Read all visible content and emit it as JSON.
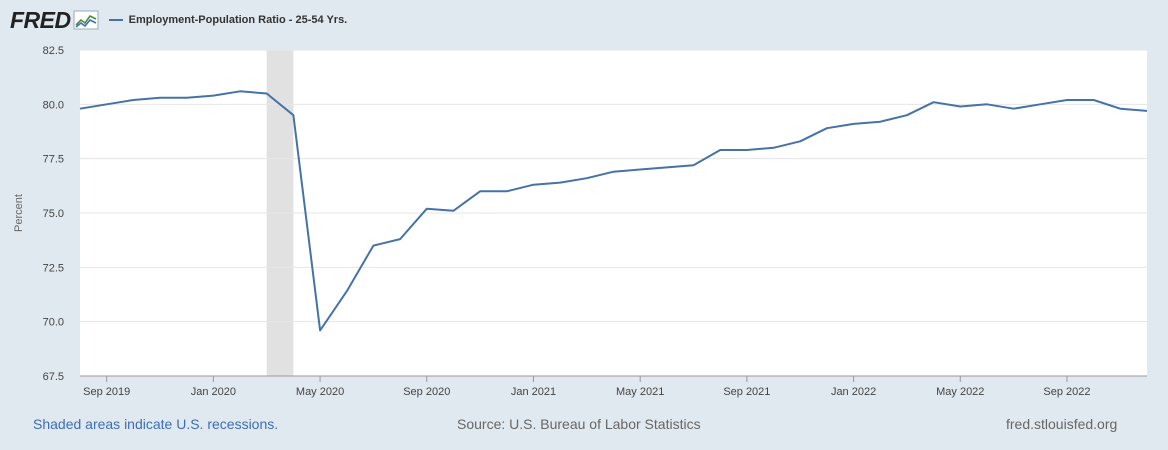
{
  "header": {
    "logo_text": "FRED",
    "logo_icon": "line-chart-icon",
    "series_label": "Employment-Population Ratio - 25-54 Yrs."
  },
  "footer": {
    "recession_note": "Shaded areas indicate U.S. recessions.",
    "source": "Source: U.S. Bureau of Labor Statistics",
    "site": "fred.stlouisfed.org"
  },
  "colors": {
    "series": "#4572a7",
    "recession": "#e1e1e1",
    "background": "#e1e9f0",
    "plot": "#ffffff"
  },
  "chart_data": {
    "type": "line",
    "title": "",
    "xlabel": "",
    "ylabel": "Percent",
    "ylim": [
      67.5,
      82.5
    ],
    "yticks": [
      "67.5",
      "70.0",
      "72.5",
      "75.0",
      "77.5",
      "80.0",
      "82.5"
    ],
    "xticks": [
      "Sep 2019",
      "Jan 2020",
      "May 2020",
      "Sep 2020",
      "Jan 2021",
      "May 2021",
      "Sep 2021",
      "Jan 2022",
      "May 2022",
      "Sep 2022"
    ],
    "grid": true,
    "recessions": [
      {
        "start": "2020-03",
        "end": "2020-04"
      }
    ],
    "series": [
      {
        "name": "Employment-Population Ratio - 25-54 Yrs.",
        "x": [
          "2019-08",
          "2019-09",
          "2019-10",
          "2019-11",
          "2019-12",
          "2020-01",
          "2020-02",
          "2020-03",
          "2020-04",
          "2020-05",
          "2020-06",
          "2020-07",
          "2020-08",
          "2020-09",
          "2020-10",
          "2020-11",
          "2020-12",
          "2021-01",
          "2021-02",
          "2021-03",
          "2021-04",
          "2021-05",
          "2021-06",
          "2021-07",
          "2021-08",
          "2021-09",
          "2021-10",
          "2021-11",
          "2021-12",
          "2022-01",
          "2022-02",
          "2022-03",
          "2022-04",
          "2022-05",
          "2022-06",
          "2022-07",
          "2022-08",
          "2022-09",
          "2022-10",
          "2022-11",
          "2022-12"
        ],
        "values": [
          79.8,
          80.0,
          80.2,
          80.3,
          80.3,
          80.4,
          80.6,
          80.5,
          79.5,
          69.6,
          71.4,
          73.5,
          73.8,
          75.2,
          75.1,
          76.0,
          76.0,
          76.3,
          76.4,
          76.6,
          76.9,
          77.0,
          77.1,
          77.2,
          77.9,
          77.9,
          78.0,
          78.3,
          78.9,
          79.1,
          79.2,
          79.5,
          80.1,
          79.9,
          80.0,
          79.8,
          80.0,
          80.2,
          80.2,
          79.8,
          79.7
        ]
      }
    ]
  }
}
